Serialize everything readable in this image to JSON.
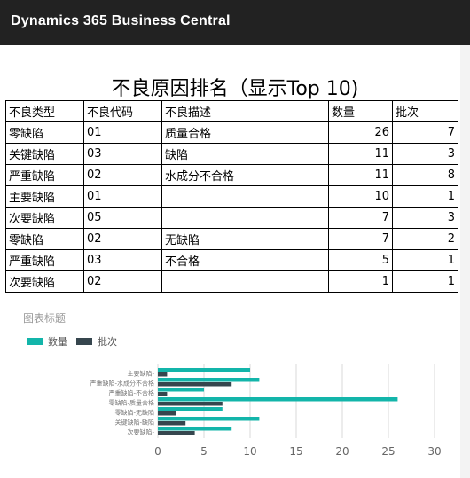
{
  "app": {
    "title": "Dynamics 365 Business Central"
  },
  "report": {
    "title": "不良原因排名（显示Top 10)",
    "columns": [
      "不良类型",
      "不良代码",
      "不良描述",
      "数量",
      "批次"
    ],
    "rows": [
      [
        "零缺陷",
        "01",
        "质量合格",
        "26",
        "7"
      ],
      [
        "关键缺陷",
        "03",
        "缺陷",
        "11",
        "3"
      ],
      [
        "严重缺陷",
        "02",
        "水成分不合格",
        "11",
        "8"
      ],
      [
        "主要缺陷",
        "01",
        "",
        "10",
        "1"
      ],
      [
        "次要缺陷",
        "05",
        "",
        "7",
        "3"
      ],
      [
        "零缺陷",
        "02",
        "无缺陷",
        "7",
        "2"
      ],
      [
        "严重缺陷",
        "03",
        "不合格",
        "5",
        "1"
      ],
      [
        "次要缺陷",
        "02",
        "",
        "1",
        "1"
      ]
    ]
  },
  "chart_data": {
    "type": "bar",
    "orientation": "horizontal",
    "title": "图表标题",
    "legend_position": "top-left",
    "categories": [
      "主要缺陷-",
      "严重缺陷-水成分不合格",
      "严重缺陷-不合格",
      "零缺陷-质量合格",
      "零缺陷-无缺陷",
      "关键缺陷-缺陷",
      "次要缺陷-"
    ],
    "series": [
      {
        "name": "数量",
        "color": "#13b5aa",
        "values": [
          10,
          11,
          5,
          26,
          7,
          11,
          8
        ]
      },
      {
        "name": "批次",
        "color": "#36464e",
        "values": [
          1,
          8,
          1,
          7,
          2,
          3,
          4
        ]
      }
    ],
    "xlim": [
      0,
      30
    ],
    "xticks": [
      "0",
      "5",
      "10",
      "15",
      "20",
      "25",
      "30"
    ],
    "grid": true
  }
}
